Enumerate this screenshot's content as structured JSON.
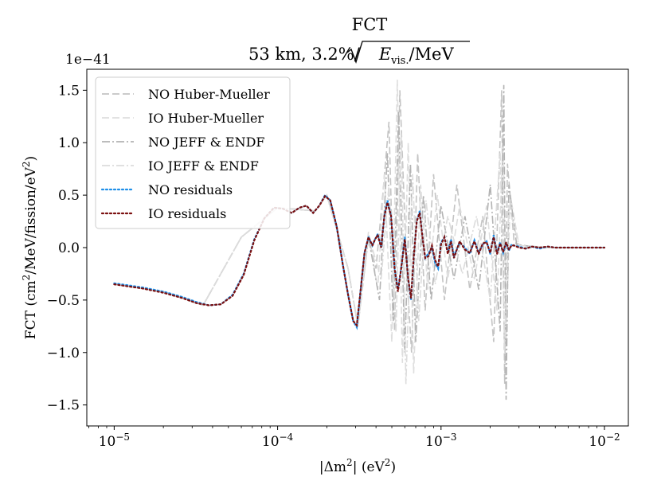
{
  "chart_data": {
    "type": "line",
    "title": "FCT",
    "subtitle_prefix": "53 km, 3.2%/",
    "subtitle_var": "E",
    "subtitle_sub": "vis.",
    "subtitle_suffix": "/MeV",
    "xlabel_prefix": "|Δm",
    "xlabel_sup": "2",
    "xlabel_suffix": "| (eV",
    "xlabel_unit_sup": "2",
    "xlabel_close": ")",
    "ylabel_prefix": "FCT (cm",
    "ylabel_sup1": "2",
    "ylabel_mid": "/MeV/fission/eV",
    "ylabel_sup2": "2",
    "ylabel_close": ")",
    "y_offset_label": "1e−41",
    "x_scale": "log",
    "xlim": [
      6.8e-06,
      0.014
    ],
    "ylim": [
      -1.7,
      1.7
    ],
    "x_ticks": [
      {
        "value": 1e-05,
        "base": "10",
        "exp": "−5"
      },
      {
        "value": 0.0001,
        "base": "10",
        "exp": "−4"
      },
      {
        "value": 0.001,
        "base": "10",
        "exp": "−3"
      },
      {
        "value": 0.01,
        "base": "10",
        "exp": "−2"
      }
    ],
    "y_ticks": [
      {
        "value": 1.5,
        "label": "1.5"
      },
      {
        "value": 1.0,
        "label": "1.0"
      },
      {
        "value": 0.5,
        "label": "0.5"
      },
      {
        "value": 0.0,
        "label": "0.0"
      },
      {
        "value": -0.5,
        "label": "−0.5"
      },
      {
        "value": -1.0,
        "label": "−1.0"
      },
      {
        "value": -1.5,
        "label": "−1.5"
      }
    ],
    "grid": false,
    "legend_position": "upper-left",
    "series": [
      {
        "name": "NO Huber-Mueller",
        "color": "#c4c4c4",
        "dash": "9,4",
        "style": "dashed",
        "x": [
          1e-05,
          2e-05,
          3.5e-05,
          6e-05,
          0.0001,
          0.00017,
          0.0002,
          0.00027,
          0.00031,
          0.00036,
          0.0004,
          0.00044,
          0.00048,
          0.00052,
          0.00056,
          0.00062,
          0.00066,
          0.00072,
          0.0008,
          0.0009,
          0.00105,
          0.00125,
          0.0015,
          0.0018,
          0.0021,
          0.00235,
          0.00245,
          0.00255,
          0.0028,
          0.0033,
          0.005,
          0.01
        ],
        "y": [
          -0.35,
          -0.42,
          -0.55,
          0.1,
          0.38,
          0.35,
          0.5,
          -0.2,
          -0.75,
          0.1,
          -0.2,
          0.5,
          1.2,
          -0.8,
          1.5,
          -0.3,
          -1.0,
          0.9,
          -0.6,
          0.7,
          -0.5,
          0.6,
          -0.4,
          0.3,
          -0.9,
          1.5,
          -1.3,
          0.8,
          0.05,
          0.0,
          0.0,
          0.0
        ]
      },
      {
        "name": "IO Huber-Mueller",
        "color": "#dedede",
        "dash": "9,4",
        "style": "dashed",
        "x": [
          1e-05,
          2e-05,
          3.5e-05,
          6e-05,
          0.0001,
          0.00017,
          0.0002,
          0.00027,
          0.00031,
          0.00036,
          0.00041,
          0.00045,
          0.0005,
          0.00054,
          0.00058,
          0.00063,
          0.00068,
          0.00075,
          0.00083,
          0.00095,
          0.0011,
          0.0013,
          0.0016,
          0.0019,
          0.0022,
          0.0024,
          0.0025,
          0.00265,
          0.003,
          0.005,
          0.01
        ],
        "y": [
          -0.35,
          -0.42,
          -0.55,
          0.1,
          0.38,
          0.35,
          0.5,
          -0.2,
          -0.75,
          0.15,
          -0.4,
          0.7,
          -0.9,
          1.6,
          -1.1,
          1.0,
          -1.2,
          0.6,
          -0.4,
          0.5,
          -0.3,
          0.4,
          -0.3,
          0.4,
          -0.6,
          1.1,
          -0.9,
          0.5,
          0.02,
          0.0,
          0.0
        ]
      },
      {
        "name": "NO JEFF & ENDF",
        "color": "#b3b3b3",
        "dash": "10,3,2,3",
        "style": "dashdot",
        "x": [
          1e-05,
          2e-05,
          3.5e-05,
          6e-05,
          0.0001,
          0.00017,
          0.0002,
          0.00027,
          0.00031,
          0.00036,
          0.00042,
          0.00047,
          0.00051,
          0.00055,
          0.0006,
          0.00065,
          0.0007,
          0.00078,
          0.00087,
          0.001,
          0.0012,
          0.0014,
          0.0017,
          0.002,
          0.0023,
          0.00242,
          0.0025,
          0.0026,
          0.0029,
          0.004,
          0.01
        ],
        "y": [
          -0.35,
          -0.42,
          -0.55,
          0.1,
          0.38,
          0.35,
          0.5,
          -0.2,
          -0.75,
          0.1,
          -0.5,
          0.9,
          -0.7,
          1.3,
          -1.0,
          0.8,
          -0.9,
          0.5,
          -0.5,
          0.4,
          -0.3,
          0.3,
          -0.4,
          0.6,
          -0.8,
          1.55,
          -1.45,
          0.6,
          0.03,
          0.0,
          0.0
        ]
      },
      {
        "name": "IO JEFF & ENDF",
        "color": "#dcdcdc",
        "dash": "10,3,2,3",
        "style": "dashdot",
        "x": [
          1e-05,
          2e-05,
          3.5e-05,
          6e-05,
          0.0001,
          0.00017,
          0.0002,
          0.00027,
          0.00031,
          0.00036,
          0.00043,
          0.00048,
          0.00053,
          0.00057,
          0.00061,
          0.00067,
          0.00073,
          0.00081,
          0.00092,
          0.0011,
          0.00135,
          0.00165,
          0.002,
          0.0023,
          0.00245,
          0.0026,
          0.003,
          0.005,
          0.01
        ],
        "y": [
          -0.35,
          -0.42,
          -0.55,
          0.1,
          0.38,
          0.35,
          0.5,
          -0.2,
          -0.75,
          0.12,
          -0.3,
          0.6,
          -0.8,
          1.1,
          -1.3,
          0.7,
          -0.7,
          0.45,
          -0.35,
          0.3,
          -0.25,
          0.3,
          -0.5,
          0.9,
          -1.0,
          0.4,
          0.02,
          0.0,
          0.0
        ]
      },
      {
        "name": "NO residuals",
        "color": "#1f8fe8",
        "dash": "2,3",
        "style": "dotted",
        "x": [
          1e-05,
          1.5e-05,
          2e-05,
          2.6e-05,
          3.2e-05,
          3.8e-05,
          4.5e-05,
          5.3e-05,
          6.2e-05,
          7.2e-05,
          8.3e-05,
          9.5e-05,
          0.000108,
          0.000122,
          0.000136,
          0.00015,
          0.000165,
          0.00018,
          0.000195,
          0.00021,
          0.00023,
          0.00025,
          0.00027,
          0.00029,
          0.000305,
          0.00032,
          0.00034,
          0.00036,
          0.00038,
          0.000395,
          0.00041,
          0.00043,
          0.00045,
          0.00047,
          0.000495,
          0.00052,
          0.000545,
          0.00057,
          0.0006,
          0.00063,
          0.000655,
          0.00068,
          0.00071,
          0.00074,
          0.00077,
          0.0008,
          0.00084,
          0.00088,
          0.00092,
          0.00096,
          0.001,
          0.00105,
          0.0011,
          0.00115,
          0.0012,
          0.0013,
          0.0014,
          0.0015,
          0.0016,
          0.0017,
          0.0018,
          0.0019,
          0.002,
          0.0021,
          0.0022,
          0.0023,
          0.0024,
          0.0025,
          0.0026,
          0.0027,
          0.0028,
          0.003,
          0.0033,
          0.0036,
          0.004,
          0.0045,
          0.005,
          0.006,
          0.007,
          0.008,
          0.01
        ],
        "y": [
          -0.34,
          -0.38,
          -0.42,
          -0.47,
          -0.52,
          -0.55,
          -0.54,
          -0.45,
          -0.25,
          0.08,
          0.28,
          0.38,
          0.37,
          0.33,
          0.38,
          0.4,
          0.33,
          0.4,
          0.5,
          0.45,
          0.2,
          -0.15,
          -0.45,
          -0.7,
          -0.76,
          -0.45,
          -0.05,
          0.1,
          0.02,
          0.08,
          0.13,
          0.0,
          0.3,
          0.45,
          0.3,
          -0.2,
          -0.4,
          -0.2,
          0.1,
          -0.3,
          -0.5,
          -0.1,
          0.25,
          0.35,
          0.1,
          -0.1,
          -0.05,
          0.0,
          -0.15,
          -0.2,
          0.05,
          0.1,
          -0.05,
          0.08,
          -0.08,
          0.05,
          0.0,
          -0.06,
          0.07,
          -0.05,
          0.03,
          0.06,
          -0.06,
          0.12,
          -0.05,
          0.05,
          -0.05,
          0.04,
          -0.03,
          0.03,
          0.02,
          0.01,
          -0.01,
          0.01,
          -0.01,
          0.01,
          0.0,
          0.0,
          0.0,
          0.0,
          0.0
        ]
      },
      {
        "name": "IO residuals",
        "color": "#7b0f0f",
        "dash": "2,3",
        "style": "dotted",
        "x": [
          1e-05,
          1.5e-05,
          2e-05,
          2.6e-05,
          3.2e-05,
          3.8e-05,
          4.5e-05,
          5.3e-05,
          6.2e-05,
          7.2e-05,
          8.3e-05,
          9.5e-05,
          0.000108,
          0.000122,
          0.000136,
          0.00015,
          0.000165,
          0.00018,
          0.000195,
          0.00021,
          0.00023,
          0.00025,
          0.00027,
          0.00029,
          0.000305,
          0.00032,
          0.00034,
          0.00036,
          0.00038,
          0.000395,
          0.00041,
          0.00043,
          0.00045,
          0.00047,
          0.000495,
          0.00052,
          0.000545,
          0.00057,
          0.0006,
          0.00063,
          0.000655,
          0.00068,
          0.00071,
          0.00074,
          0.00077,
          0.0008,
          0.00084,
          0.00088,
          0.00092,
          0.00096,
          0.001,
          0.00105,
          0.0011,
          0.00115,
          0.0012,
          0.0013,
          0.0014,
          0.0015,
          0.0016,
          0.0017,
          0.0018,
          0.0019,
          0.002,
          0.0021,
          0.0022,
          0.0023,
          0.0024,
          0.0025,
          0.0026,
          0.0027,
          0.0028,
          0.003,
          0.0033,
          0.0036,
          0.004,
          0.0045,
          0.005,
          0.006,
          0.007,
          0.008,
          0.01
        ],
        "y": [
          -0.35,
          -0.39,
          -0.43,
          -0.48,
          -0.53,
          -0.55,
          -0.54,
          -0.46,
          -0.26,
          0.07,
          0.28,
          0.38,
          0.37,
          0.33,
          0.38,
          0.4,
          0.33,
          0.4,
          0.49,
          0.45,
          0.2,
          -0.15,
          -0.45,
          -0.7,
          -0.74,
          -0.45,
          -0.05,
          0.1,
          0.02,
          0.08,
          0.12,
          0.0,
          0.3,
          0.43,
          0.3,
          -0.2,
          -0.42,
          -0.2,
          0.08,
          -0.3,
          -0.48,
          -0.1,
          0.25,
          0.33,
          0.1,
          -0.1,
          -0.08,
          0.02,
          -0.12,
          -0.18,
          0.03,
          0.1,
          -0.06,
          0.06,
          -0.1,
          0.06,
          -0.02,
          -0.05,
          0.06,
          -0.06,
          0.04,
          0.05,
          -0.05,
          0.1,
          -0.06,
          0.04,
          -0.04,
          0.05,
          -0.02,
          0.02,
          0.02,
          0.0,
          -0.01,
          0.01,
          0.0,
          0.01,
          0.0,
          0.0,
          0.0,
          0.0,
          0.0
        ]
      }
    ]
  }
}
